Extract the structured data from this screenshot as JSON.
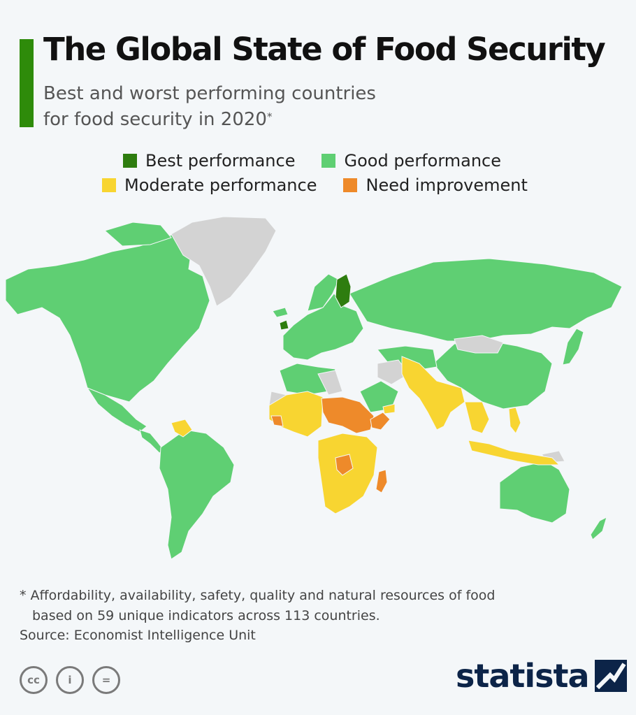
{
  "header": {
    "title": "The Global State of Food Security",
    "subtitle_line1": "Best and worst performing countries",
    "subtitle_line2": "for food security in 2020",
    "subtitle_mark": "*"
  },
  "legend": {
    "items": [
      {
        "label": "Best performance",
        "color": "#2e7d0f"
      },
      {
        "label": "Good performance",
        "color": "#5fcf73"
      },
      {
        "label": "Moderate performance",
        "color": "#f8d531"
      },
      {
        "label": "Need improvement",
        "color": "#ee8a2a"
      }
    ],
    "no_data_color": "#d3d3d3"
  },
  "footnote": {
    "line1": "* Affordability, availability, safety, quality and natural resources of food",
    "line2": "based on 59 unique indicators across 113 countries."
  },
  "source": "Source: Economist Intelligence Unit",
  "license_icons": [
    {
      "name": "cc-icon",
      "glyph": "cc"
    },
    {
      "name": "by-icon",
      "glyph": "i"
    },
    {
      "name": "nd-icon",
      "glyph": "="
    }
  ],
  "brand": {
    "name": "statista"
  }
}
